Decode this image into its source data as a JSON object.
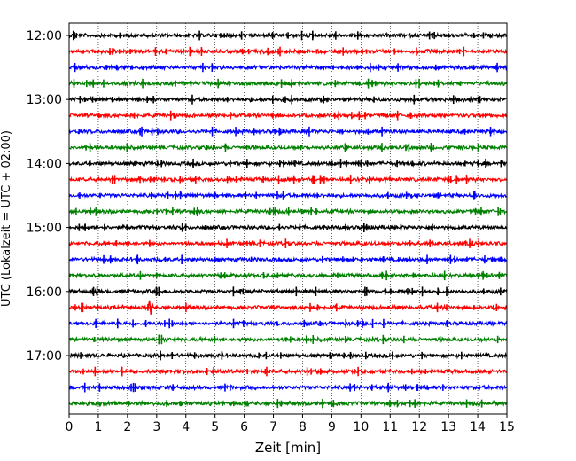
{
  "chart_data": {
    "type": "line",
    "title": "",
    "xlabel": "Zeit  [min]",
    "ylabel": "UTC (Lokalzeit = UTC + 02:00)",
    "xlim": [
      0,
      15
    ],
    "xticks": [
      0,
      1,
      2,
      3,
      4,
      5,
      6,
      7,
      8,
      9,
      10,
      11,
      12,
      13,
      14,
      15
    ],
    "xtick_labels": [
      "0",
      "1",
      "2",
      "3",
      "4",
      "5",
      "6",
      "7",
      "8",
      "9",
      "10",
      "11",
      "12",
      "13",
      "14",
      "15"
    ],
    "yticks": [
      {
        "label": "12:00",
        "row": 0
      },
      {
        "label": "13:00",
        "row": 4
      },
      {
        "label": "14:00",
        "row": 8
      },
      {
        "label": "15:00",
        "row": 12
      },
      {
        "label": "16:00",
        "row": 16
      },
      {
        "label": "17:00",
        "row": 20
      }
    ],
    "row_interval_min": 15,
    "rows": [
      {
        "start": "12:00",
        "color": "#000000"
      },
      {
        "start": "12:15",
        "color": "#ff0000"
      },
      {
        "start": "12:30",
        "color": "#0000ff"
      },
      {
        "start": "12:45",
        "color": "#008000"
      },
      {
        "start": "13:00",
        "color": "#000000"
      },
      {
        "start": "13:15",
        "color": "#ff0000"
      },
      {
        "start": "13:30",
        "color": "#0000ff"
      },
      {
        "start": "13:45",
        "color": "#008000"
      },
      {
        "start": "14:00",
        "color": "#000000"
      },
      {
        "start": "14:15",
        "color": "#ff0000"
      },
      {
        "start": "14:30",
        "color": "#0000ff"
      },
      {
        "start": "14:45",
        "color": "#008000"
      },
      {
        "start": "15:00",
        "color": "#000000"
      },
      {
        "start": "15:15",
        "color": "#ff0000"
      },
      {
        "start": "15:30",
        "color": "#0000ff"
      },
      {
        "start": "15:45",
        "color": "#008000"
      },
      {
        "start": "16:00",
        "color": "#000000"
      },
      {
        "start": "16:15",
        "color": "#ff0000"
      },
      {
        "start": "16:30",
        "color": "#0000ff"
      },
      {
        "start": "16:45",
        "color": "#008000"
      },
      {
        "start": "17:00",
        "color": "#000000"
      },
      {
        "start": "17:15",
        "color": "#ff0000"
      },
      {
        "start": "17:30",
        "color": "#0000ff"
      },
      {
        "start": "17:45",
        "color": "#008000"
      }
    ],
    "grid": {
      "vertical": true,
      "style": "dotted"
    },
    "events": [
      {
        "row": 17,
        "minute": 2.8,
        "amplitude": "large"
      }
    ]
  }
}
